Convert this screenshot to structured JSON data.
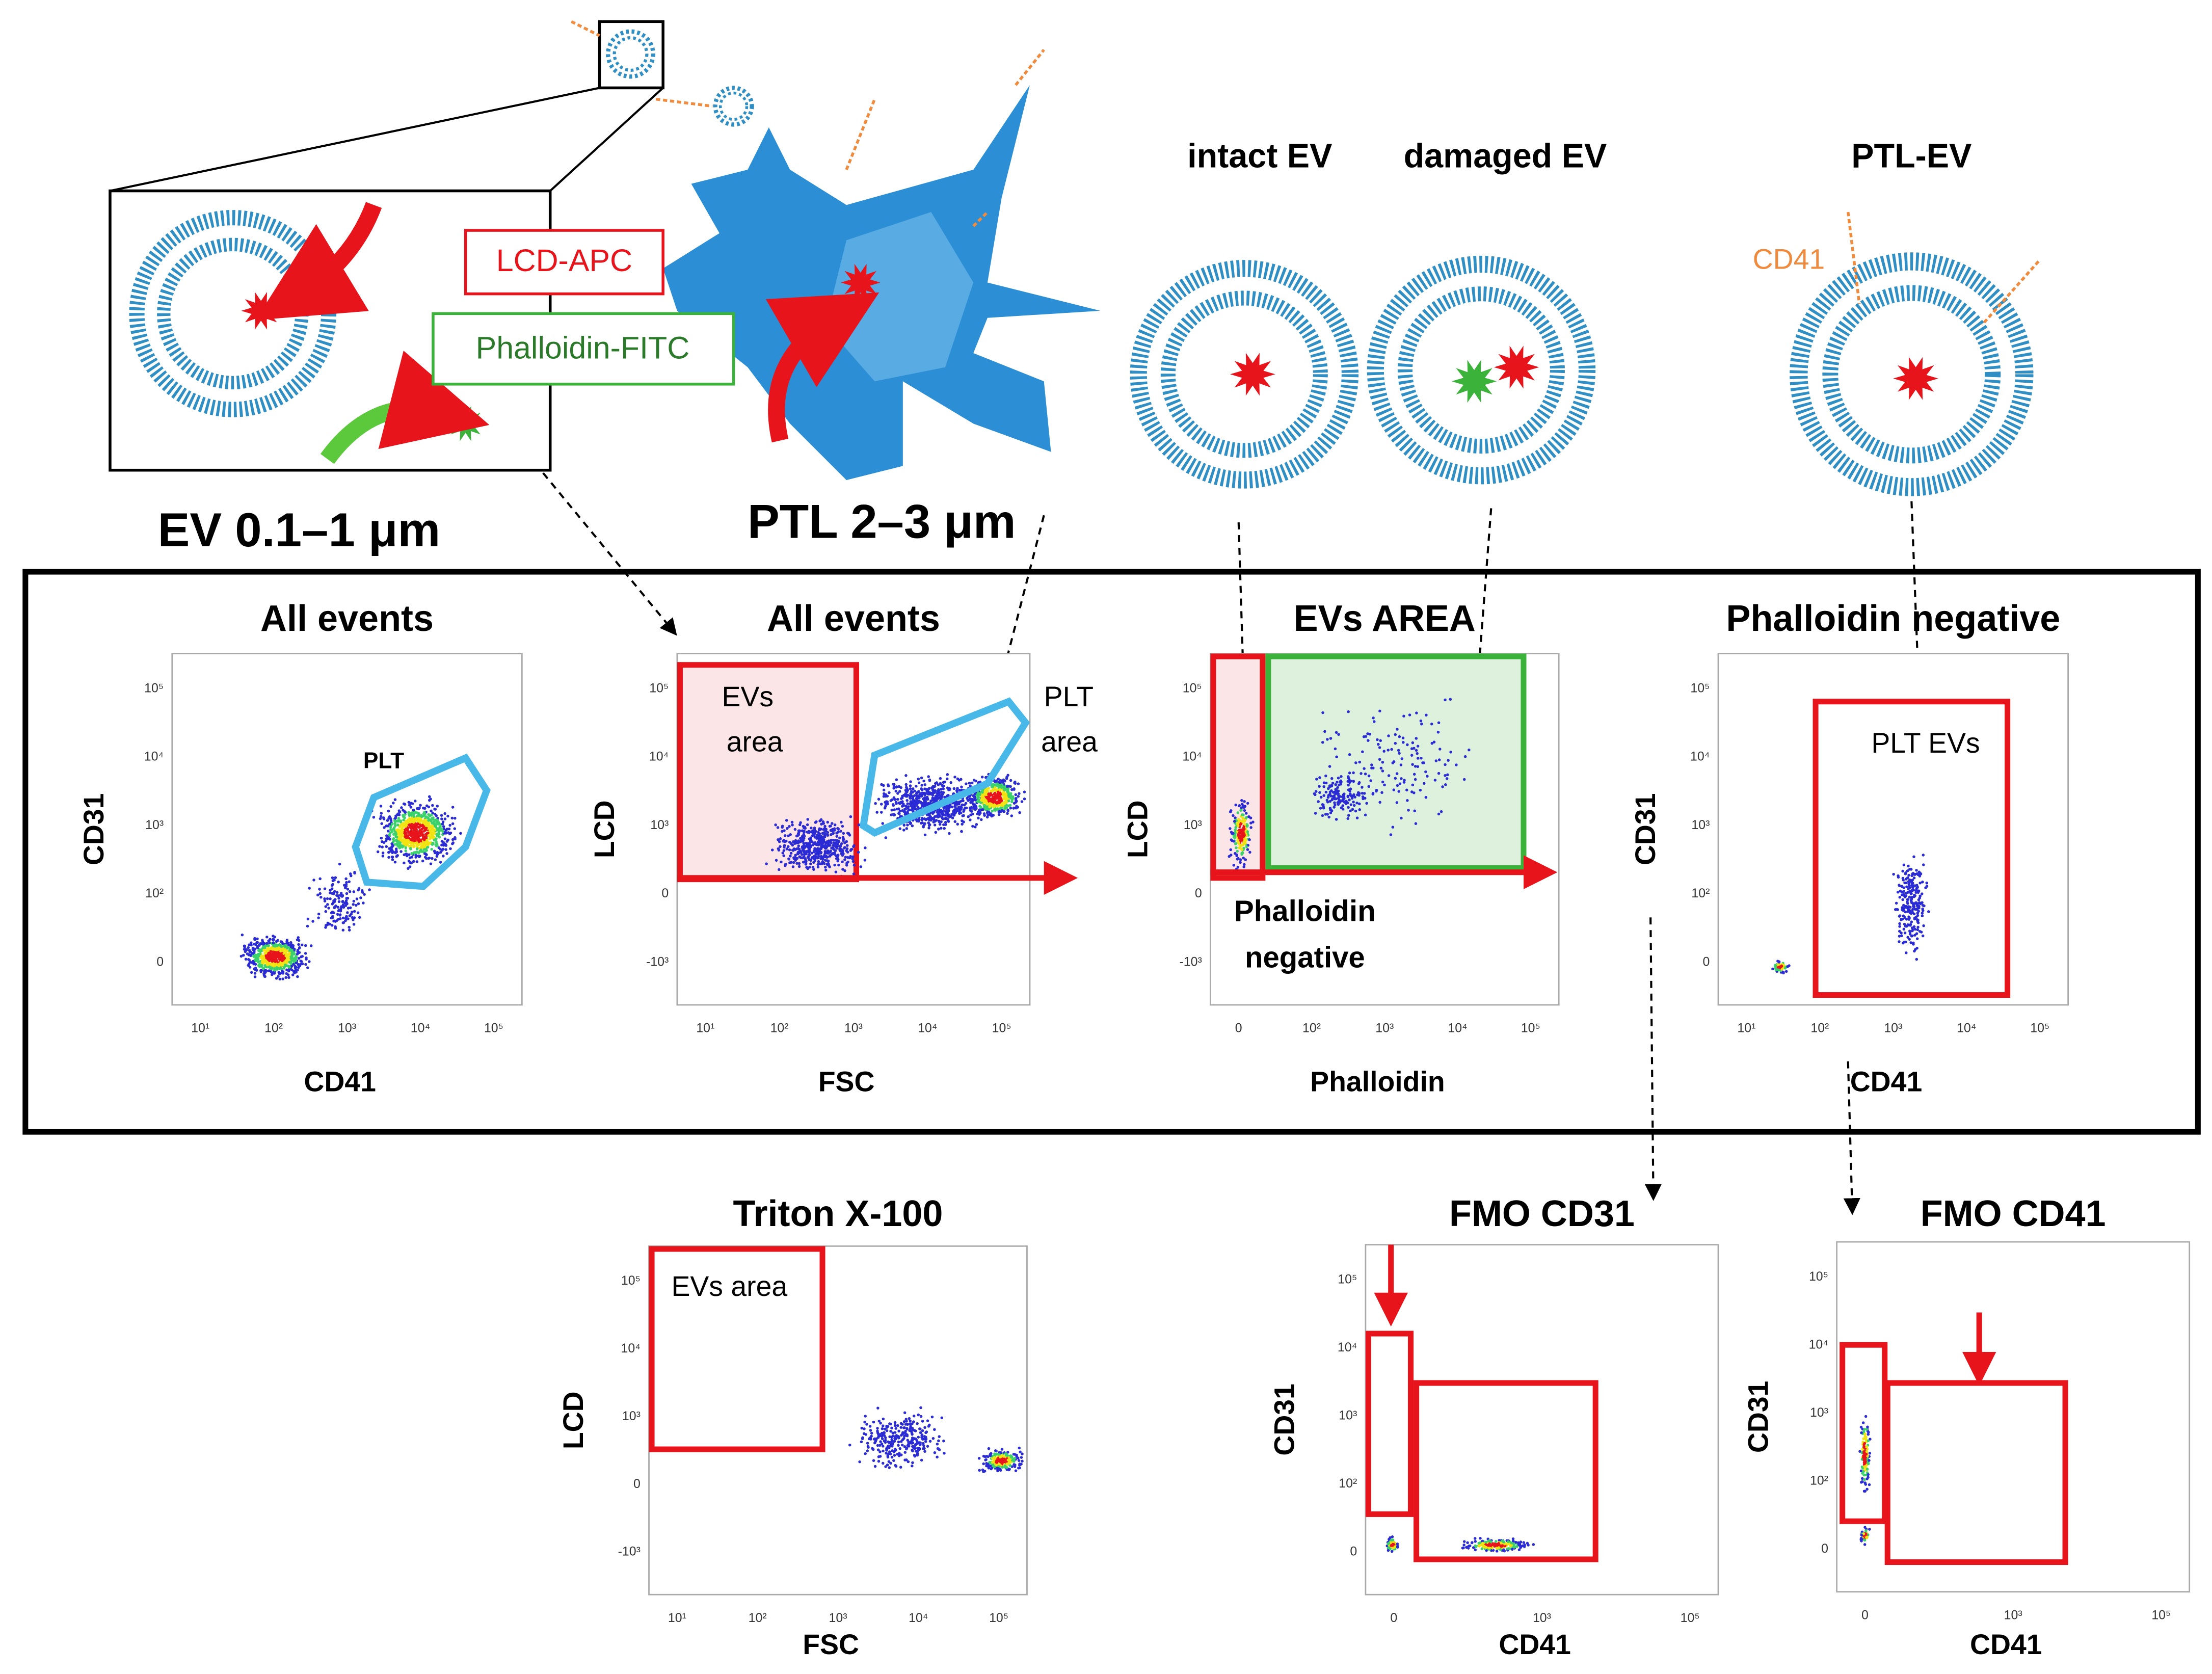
{
  "illustration": {
    "ev_label": "EV 0.1–1 μm",
    "ptl_label": "PTL 2–3 μm",
    "lcd_box": "LCD-APC",
    "phalloidin_box": "Phalloidin-FITC",
    "intact": "intact EV",
    "damaged": "damaged EV",
    "ptl_ev": "PTL-EV",
    "cd41": "CD41"
  },
  "plots": [
    {
      "title": "All events",
      "x_label": "CD41",
      "y_label": "CD31",
      "x_ticks": [
        "10¹",
        "10²",
        "10³",
        "10⁴",
        "10⁵"
      ],
      "y_ticks": [
        "10⁵",
        "10⁴",
        "10³",
        "10²",
        "0"
      ],
      "gate_labels": [
        [
          "PLT"
        ]
      ]
    },
    {
      "title": "All events",
      "x_label": "FSC",
      "y_label": "LCD",
      "x_ticks": [
        "10¹",
        "10²",
        "10³",
        "10⁴",
        "10⁵"
      ],
      "y_ticks": [
        "10⁵",
        "10⁴",
        "10³",
        "0",
        "-10³"
      ],
      "gate_labels": [
        [
          "EVs",
          "area"
        ],
        [
          "PLT",
          "area"
        ]
      ]
    },
    {
      "title": "EVs AREA",
      "x_label": "Phalloidin",
      "y_label": "LCD",
      "x_ticks": [
        "0",
        "10²",
        "10³",
        "10⁴",
        "10⁵"
      ],
      "y_ticks": [
        "10⁵",
        "10⁴",
        "10³",
        "0",
        "-10³"
      ],
      "gate_labels": [
        [
          "Phalloidin",
          "negative"
        ]
      ]
    },
    {
      "title": "Phalloidin negative",
      "x_label": "CD41",
      "y_label": "CD31",
      "x_ticks": [
        "10¹",
        "10²",
        "10³",
        "10⁴",
        "10⁵"
      ],
      "y_ticks": [
        "10⁵",
        "10⁴",
        "10³",
        "10²",
        "0"
      ],
      "gate_labels": [
        [
          "PLT EVs"
        ]
      ]
    },
    {
      "title": "Triton X-100",
      "x_label": "FSC",
      "y_label": "LCD",
      "x_ticks": [
        "10¹",
        "10²",
        "10³",
        "10⁴",
        "10⁵"
      ],
      "y_ticks": [
        "10⁵",
        "10⁴",
        "10³",
        "0",
        "-10³"
      ],
      "gate_labels": [
        [
          "EVs area"
        ]
      ]
    },
    {
      "title": "FMO CD31",
      "x_label": "CD41",
      "y_label": "CD31",
      "x_ticks": [
        "0",
        "10³",
        "10⁵"
      ],
      "y_ticks": [
        "10⁵",
        "10⁴",
        "10³",
        "10²",
        "0"
      ],
      "gate_labels": []
    },
    {
      "title": "FMO CD41",
      "x_label": "CD41",
      "y_label": "CD31",
      "x_ticks": [
        "0",
        "10³",
        "10⁵"
      ],
      "y_ticks": [
        "10⁵",
        "10⁴",
        "10³",
        "10²",
        "0"
      ],
      "gate_labels": []
    }
  ]
}
